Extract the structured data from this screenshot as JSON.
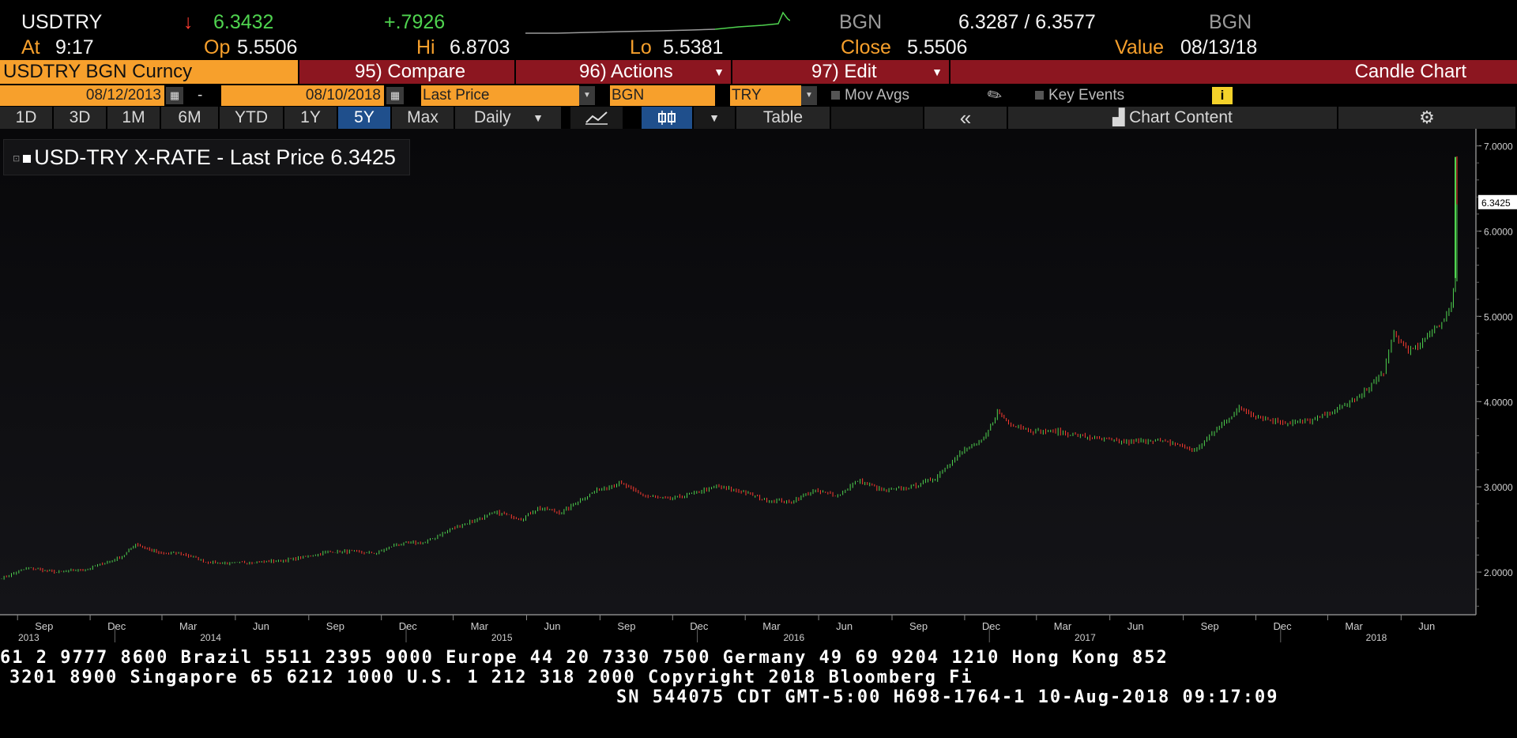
{
  "header": {
    "ticker": "USDTRY",
    "arrow": "↓",
    "last": "6.3432",
    "change": "+.7926",
    "source1": "BGN",
    "bid_ask": "6.3287 / 6.3577",
    "source2": "BGN",
    "at_label": "At",
    "at_value": "9:17",
    "op_label": "Op",
    "op_value": "5.5506",
    "hi_label": "Hi",
    "hi_value": "6.8703",
    "lo_label": "Lo",
    "lo_value": "5.5381",
    "close_label": "Close",
    "close_value": "5.5506",
    "value_label": "Value",
    "value_date": "08/13/18"
  },
  "toolbar": {
    "security": "USDTRY BGN Curncy",
    "compare": "95) Compare",
    "actions": "96) Actions",
    "edit": "97) Edit",
    "chart_type": "Candle Chart",
    "start_date": "08/12/2013",
    "dash": "-",
    "end_date": "08/10/2018",
    "field": "Last Price",
    "source": "BGN",
    "currency": "TRY",
    "mov_avgs": "Mov Avgs",
    "key_events": "Key Events",
    "info": "i",
    "ranges": [
      "1D",
      "3D",
      "1M",
      "6M",
      "YTD",
      "1Y",
      "5Y",
      "Max"
    ],
    "selected_range": "5Y",
    "period": "Daily",
    "table": "Table",
    "collapse": "«",
    "chart_content": "Chart Content",
    "icons": [
      "calendar-icon",
      "line-chart-icon",
      "candle-chart-icon",
      "pencil-icon",
      "gear-icon",
      "chart-content-icon"
    ]
  },
  "legend": {
    "series": "USD-TRY X-RATE - Last Price",
    "value": "6.3425"
  },
  "ticker_tape": {
    "line1": "61 2 9777 8600 Brazil 5511 2395 9000 Europe 44 20 7330 7500 Germany 49 69 9204 1210 Hong Kong 852",
    "line2": "3201 8900      Singapore 65 6212 1000      U.S. 1 212 318 2000          Copyright 2018 Bloomberg Fi",
    "line3": "SN 544075 CDT  GMT-5:00 H698-1764-1 10-Aug-2018 09:17:09"
  },
  "colors": {
    "background": "#000000",
    "up": "#4fd34f",
    "down": "#ff3b30",
    "amber": "#f7a02c",
    "maroon": "#8c1620"
  },
  "chart_data": {
    "type": "line",
    "ylim": [
      1.5,
      7.2
    ],
    "yticks": [
      "2.0000",
      "3.0000",
      "4.0000",
      "5.0000",
      "6.0000",
      "7.0000"
    ],
    "last_price_label": "6.3425",
    "grid": false,
    "months": [
      "Sep",
      "Dec",
      "Mar",
      "Jun",
      "Sep",
      "Dec",
      "Mar",
      "Jun",
      "Sep",
      "Dec",
      "Mar",
      "Jun",
      "Sep",
      "Dec",
      "Mar",
      "Jun",
      "Sep",
      "Dec",
      "Mar",
      "Jun"
    ],
    "years": [
      "2013",
      "2014",
      "2015",
      "2016",
      "2017",
      "2018"
    ],
    "x_start": "2013-08-12",
    "x_end": "2018-08-10",
    "series": [
      {
        "points": [
          [
            "2013-08-12",
            1.93
          ],
          [
            "2013-09-15",
            2.05
          ],
          [
            "2013-10-20",
            2.0
          ],
          [
            "2013-11-25",
            2.03
          ],
          [
            "2014-01-10",
            2.18
          ],
          [
            "2014-01-27",
            2.33
          ],
          [
            "2014-02-25",
            2.22
          ],
          [
            "2014-03-25",
            2.22
          ],
          [
            "2014-04-25",
            2.12
          ],
          [
            "2014-05-25",
            2.1
          ],
          [
            "2014-06-25",
            2.12
          ],
          [
            "2014-07-25",
            2.13
          ],
          [
            "2014-08-25",
            2.17
          ],
          [
            "2014-09-25",
            2.24
          ],
          [
            "2014-10-25",
            2.24
          ],
          [
            "2014-11-25",
            2.22
          ],
          [
            "2014-12-20",
            2.33
          ],
          [
            "2015-01-25",
            2.35
          ],
          [
            "2015-02-25",
            2.5
          ],
          [
            "2015-03-25",
            2.6
          ],
          [
            "2015-04-25",
            2.7
          ],
          [
            "2015-05-25",
            2.62
          ],
          [
            "2015-06-15",
            2.75
          ],
          [
            "2015-07-15",
            2.7
          ],
          [
            "2015-08-25",
            2.95
          ],
          [
            "2015-09-25",
            3.05
          ],
          [
            "2015-10-25",
            2.9
          ],
          [
            "2015-11-25",
            2.85
          ],
          [
            "2015-12-25",
            2.92
          ],
          [
            "2016-01-25",
            3.0
          ],
          [
            "2016-02-25",
            2.95
          ],
          [
            "2016-03-25",
            2.85
          ],
          [
            "2016-04-25",
            2.82
          ],
          [
            "2016-05-25",
            2.95
          ],
          [
            "2016-06-25",
            2.9
          ],
          [
            "2016-07-20",
            3.07
          ],
          [
            "2016-08-25",
            2.95
          ],
          [
            "2016-09-25",
            3.0
          ],
          [
            "2016-10-25",
            3.1
          ],
          [
            "2016-11-25",
            3.4
          ],
          [
            "2016-12-25",
            3.55
          ],
          [
            "2017-01-11",
            3.88
          ],
          [
            "2017-01-25",
            3.75
          ],
          [
            "2017-02-25",
            3.65
          ],
          [
            "2017-03-25",
            3.65
          ],
          [
            "2017-04-25",
            3.6
          ],
          [
            "2017-05-25",
            3.55
          ],
          [
            "2017-06-25",
            3.52
          ],
          [
            "2017-07-25",
            3.55
          ],
          [
            "2017-08-25",
            3.5
          ],
          [
            "2017-09-15",
            3.42
          ],
          [
            "2017-10-10",
            3.65
          ],
          [
            "2017-11-10",
            3.92
          ],
          [
            "2017-12-10",
            3.8
          ],
          [
            "2018-01-10",
            3.75
          ],
          [
            "2018-02-10",
            3.78
          ],
          [
            "2018-03-10",
            3.9
          ],
          [
            "2018-04-10",
            4.05
          ],
          [
            "2018-05-10",
            4.35
          ],
          [
            "2018-05-23",
            4.8
          ],
          [
            "2018-06-10",
            4.6
          ],
          [
            "2018-06-25",
            4.65
          ],
          [
            "2018-07-10",
            4.85
          ],
          [
            "2018-07-25",
            4.95
          ],
          [
            "2018-08-03",
            5.15
          ],
          [
            "2018-08-08",
            5.45
          ],
          [
            "2018-08-10",
            6.87
          ],
          [
            "2018-08-10",
            6.34
          ]
        ]
      }
    ]
  }
}
